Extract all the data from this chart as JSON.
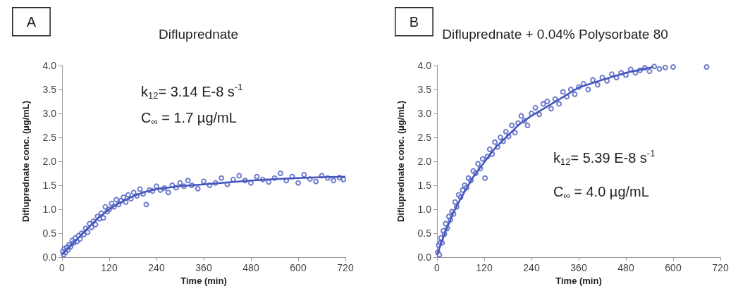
{
  "chart_data": [
    {
      "type": "scatter",
      "title": "Difluprednate",
      "xlabel": "Time (min)",
      "ylabel": "Difluprednate conc. (µg/mL)",
      "marker": "circle",
      "grid": false,
      "annotations": [
        "A",
        "k$_{12}$= 3.14 E-8 s$^{-1}$",
        "C$_{∞}$ = 1.7 µg/mL"
      ],
      "xlim": [
        0,
        720
      ],
      "xticks": [
        0,
        120,
        240,
        360,
        480,
        600,
        720
      ],
      "ylim": [
        0,
        4
      ],
      "yticks": [
        {
          "value": 0,
          "label": "0.0"
        },
        {
          "value": 0.5,
          "label": "0.5"
        },
        {
          "value": 1,
          "label": "1.0"
        },
        {
          "value": 1.5,
          "label": "1.5"
        },
        {
          "value": 2,
          "label": "2.0"
        },
        {
          "value": 2.5,
          "label": "2.5"
        },
        {
          "value": 3,
          "label": "3.0"
        },
        {
          "value": 3.5,
          "label": "3.5"
        },
        {
          "value": 4,
          "label": "4.0"
        }
      ],
      "series": [
        {
          "type": "scatter",
          "color": "#4a5cc0",
          "x": [
            2,
            4,
            6,
            9,
            12,
            15,
            18,
            22,
            26,
            30,
            34,
            38,
            42,
            46,
            50,
            55,
            60,
            65,
            70,
            75,
            80,
            85,
            90,
            95,
            100,
            105,
            110,
            115,
            120,
            126,
            132,
            138,
            144,
            150,
            156,
            162,
            168,
            175,
            182,
            190,
            198,
            206,
            214,
            222,
            230,
            240,
            250,
            260,
            270,
            280,
            290,
            300,
            310,
            320,
            330,
            345,
            360,
            375,
            390,
            405,
            420,
            435,
            450,
            465,
            480,
            495,
            510,
            525,
            540,
            555,
            570,
            585,
            600,
            615,
            630,
            645,
            660,
            675,
            690,
            705,
            715
          ],
          "values": [
            0.12,
            0.05,
            0.18,
            0.1,
            0.2,
            0.15,
            0.26,
            0.22,
            0.35,
            0.3,
            0.4,
            0.33,
            0.45,
            0.38,
            0.5,
            0.47,
            0.6,
            0.52,
            0.7,
            0.62,
            0.75,
            0.68,
            0.85,
            0.8,
            0.92,
            0.82,
            1.05,
            0.95,
            1.0,
            1.12,
            1.05,
            1.2,
            1.1,
            1.18,
            1.25,
            1.15,
            1.3,
            1.22,
            1.35,
            1.28,
            1.42,
            1.32,
            1.1,
            1.4,
            1.38,
            1.48,
            1.4,
            1.44,
            1.35,
            1.5,
            1.45,
            1.55,
            1.48,
            1.6,
            1.5,
            1.43,
            1.58,
            1.5,
            1.55,
            1.65,
            1.52,
            1.62,
            1.7,
            1.6,
            1.55,
            1.68,
            1.62,
            1.57,
            1.65,
            1.75,
            1.6,
            1.68,
            1.55,
            1.72,
            1.63,
            1.58,
            1.7,
            1.65,
            1.6,
            1.66,
            1.62
          ]
        },
        {
          "type": "line",
          "color": "#4455bb",
          "marker": "none",
          "x": [
            0,
            30,
            60,
            90,
            120,
            150,
            180,
            210,
            240,
            300,
            360,
            420,
            480,
            540,
            600,
            660,
            720
          ],
          "values": [
            0.05,
            0.3,
            0.56,
            0.8,
            1.0,
            1.15,
            1.27,
            1.36,
            1.42,
            1.48,
            1.52,
            1.56,
            1.6,
            1.63,
            1.65,
            1.67,
            1.68
          ]
        }
      ]
    },
    {
      "type": "scatter",
      "title": "Difluprednate + 0.04% Polysorbate 80",
      "xlabel": "Time (min)",
      "ylabel": "Difluprednate conc. (µg/mL)",
      "marker": "circle",
      "grid": false,
      "annotations": [
        "B",
        "k$_{12}$= 5.39 E-8 s$^{-1}$",
        "C$_{∞}$ = 4.0 µg/mL"
      ],
      "xlim": [
        0,
        720
      ],
      "xticks": [
        0,
        120,
        240,
        360,
        480,
        600,
        720
      ],
      "ylim": [
        0,
        4
      ],
      "yticks": [
        {
          "value": 0,
          "label": "0.0"
        },
        {
          "value": 0.5,
          "label": "0.5"
        },
        {
          "value": 1,
          "label": "1.0"
        },
        {
          "value": 1.5,
          "label": "1.5"
        },
        {
          "value": 2,
          "label": "2.0"
        },
        {
          "value": 2.5,
          "label": "2.5"
        },
        {
          "value": 3,
          "label": "3.0"
        },
        {
          "value": 3.5,
          "label": "3.5"
        },
        {
          "value": 4,
          "label": "4.0"
        }
      ],
      "series": [
        {
          "type": "scatter",
          "color": "#4a5cc0",
          "x": [
            2,
            4,
            6,
            8,
            10,
            13,
            16,
            19,
            22,
            26,
            30,
            34,
            38,
            42,
            46,
            50,
            55,
            60,
            65,
            70,
            75,
            80,
            86,
            92,
            98,
            104,
            110,
            116,
            122,
            128,
            134,
            140,
            147,
            154,
            161,
            168,
            175,
            182,
            190,
            198,
            206,
            214,
            222,
            230,
            240,
            250,
            260,
            270,
            280,
            290,
            300,
            310,
            320,
            330,
            340,
            350,
            360,
            372,
            384,
            396,
            408,
            420,
            432,
            444,
            456,
            468,
            480,
            492,
            504,
            516,
            528,
            540,
            552,
            565,
            580,
            600,
            685
          ],
          "values": [
            0.1,
            0.25,
            0.05,
            0.3,
            0.4,
            0.3,
            0.55,
            0.48,
            0.7,
            0.6,
            0.85,
            0.78,
            0.95,
            0.9,
            1.15,
            1.05,
            1.3,
            1.25,
            1.4,
            1.5,
            1.45,
            1.65,
            1.6,
            1.8,
            1.75,
            1.95,
            1.85,
            2.05,
            1.65,
            2.1,
            2.25,
            2.15,
            2.4,
            2.3,
            2.5,
            2.42,
            2.62,
            2.52,
            2.75,
            2.6,
            2.8,
            2.95,
            2.85,
            2.75,
            3.0,
            3.12,
            2.98,
            3.2,
            3.25,
            3.1,
            3.3,
            3.2,
            3.45,
            3.35,
            3.5,
            3.4,
            3.55,
            3.62,
            3.5,
            3.7,
            3.6,
            3.75,
            3.68,
            3.82,
            3.75,
            3.85,
            3.8,
            3.92,
            3.85,
            3.9,
            3.95,
            3.88,
            3.98,
            3.93,
            3.96,
            3.97,
            3.97
          ]
        },
        {
          "type": "line",
          "color": "#4455bb",
          "marker": "none",
          "x": [
            0,
            20,
            40,
            60,
            90,
            120,
            150,
            180,
            210,
            240,
            300,
            360,
            420,
            480,
            550
          ],
          "values": [
            0.05,
            0.5,
            0.9,
            1.22,
            1.65,
            1.98,
            2.3,
            2.54,
            2.78,
            2.95,
            3.24,
            3.54,
            3.7,
            3.85,
            3.97
          ]
        }
      ]
    }
  ]
}
